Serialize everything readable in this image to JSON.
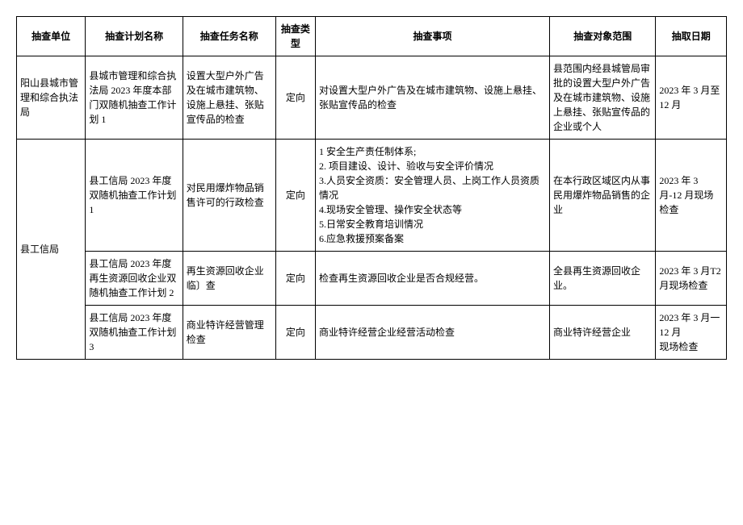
{
  "headers": {
    "unit": "抽查单位",
    "plan": "抽查计划名称",
    "task": "抽查任务名称",
    "type": "抽查类型",
    "item": "抽查事项",
    "scope": "抽查对象范围",
    "date": "抽取日期"
  },
  "rows": [
    {
      "unit": "阳山县城市管理和综合执法局",
      "plan": "县城市管理和综合执法局 2023 年度本部门双随机抽查工作计划 1",
      "task": "设置大型户外广告及在城市建筑物、设施上悬挂、张贴宣传品的检查",
      "type": "定向",
      "item": "对设置大型户外广告及在城市建筑物、设施上悬挂、张贴宣传品的检查",
      "scope": "县范围内经县城管局审批的设置大型户外广告及在城市建筑物、设施上悬挂、张贴宣传品的企业或个人",
      "date": "2023 年 3 月至12 月"
    },
    {
      "plan": "县工信局 2023 年度双随机抽查工作计划 1",
      "task": "对民用爆炸物品销售许可的行政检查",
      "type": "定向",
      "item": "1 安全生产责任制体系;\n2. 项目建设、设计、验收与安全评价情况\n3.人员安全资质：安全管理人员、上岗工作人员资质情况\n4.现场安全管理、操作安全状态等\n5.日常安全教育培训情况\n6.应急救援预案备案",
      "scope": "在本行政区域区内从事民用爆炸物品销售的企业",
      "date": "2023 年 3 月-12 月现场检查"
    },
    {
      "unit": "县工信局",
      "plan": "县工信局 2023 年度再生资源回收企业双随机抽查工作计划 2",
      "task": "再生资源回收企业临〕查",
      "type": "定向",
      "item": "检查再生资源回收企业是否合规经营。",
      "scope": "全县再生资源回收企业。",
      "date": "2023 年 3 月T2 月现场检查"
    },
    {
      "plan": "县工信局 2023 年度双随机抽查工作计划 3",
      "task": "商业特许经营管理检查",
      "type": "定向",
      "item": "商业特许经营企业经营活动检查",
      "scope": "商业特许经营企业",
      "date": "2023 年 3 月一 12 月\n现场检查"
    }
  ]
}
